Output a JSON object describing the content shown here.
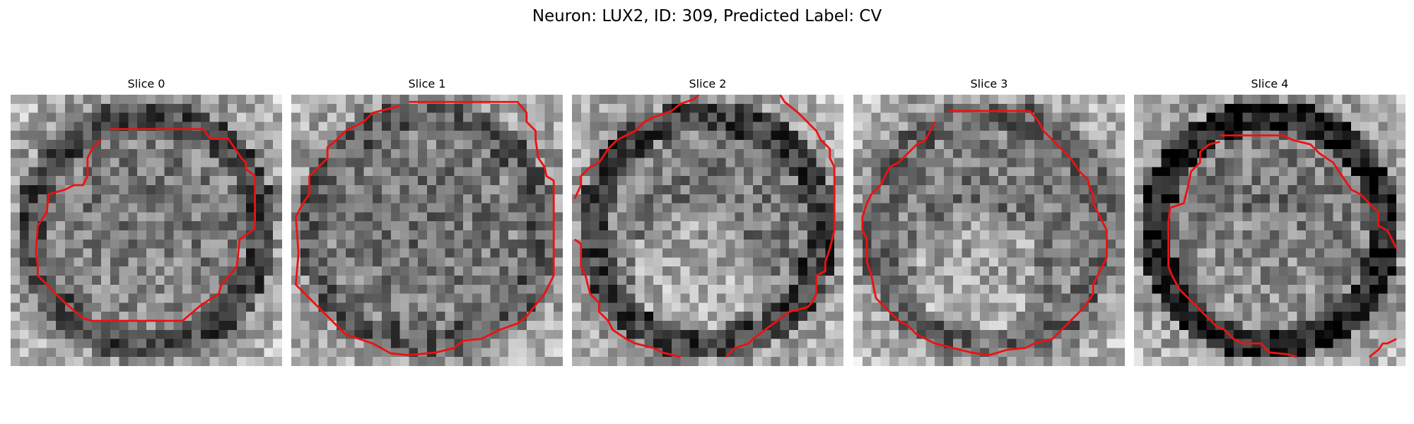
{
  "figure": {
    "title": "Neuron: LUX2, ID: 309, Predicted Label: CV"
  },
  "panels": [
    {
      "title": "Slice 0",
      "seed": 11,
      "ring_dark": 0.18,
      "ring_stroke": "contour-0",
      "bright_blob": 0.05
    },
    {
      "title": "Slice 1",
      "seed": 23,
      "ring_dark": 0.1,
      "ring_stroke": "contour-1",
      "bright_blob": 0.0
    },
    {
      "title": "Slice 2",
      "seed": 37,
      "ring_dark": 0.22,
      "ring_stroke": "contour-2",
      "bright_blob": 0.2
    },
    {
      "title": "Slice 3",
      "seed": 41,
      "ring_dark": 0.06,
      "ring_stroke": "contour-3",
      "bright_blob": 0.18
    },
    {
      "title": "Slice 4",
      "seed": 53,
      "ring_dark": 0.34,
      "ring_stroke": "contour-4",
      "bright_blob": 0.1
    }
  ],
  "style": {
    "contour_color": "#ee1111",
    "colormap": "grayscale"
  }
}
